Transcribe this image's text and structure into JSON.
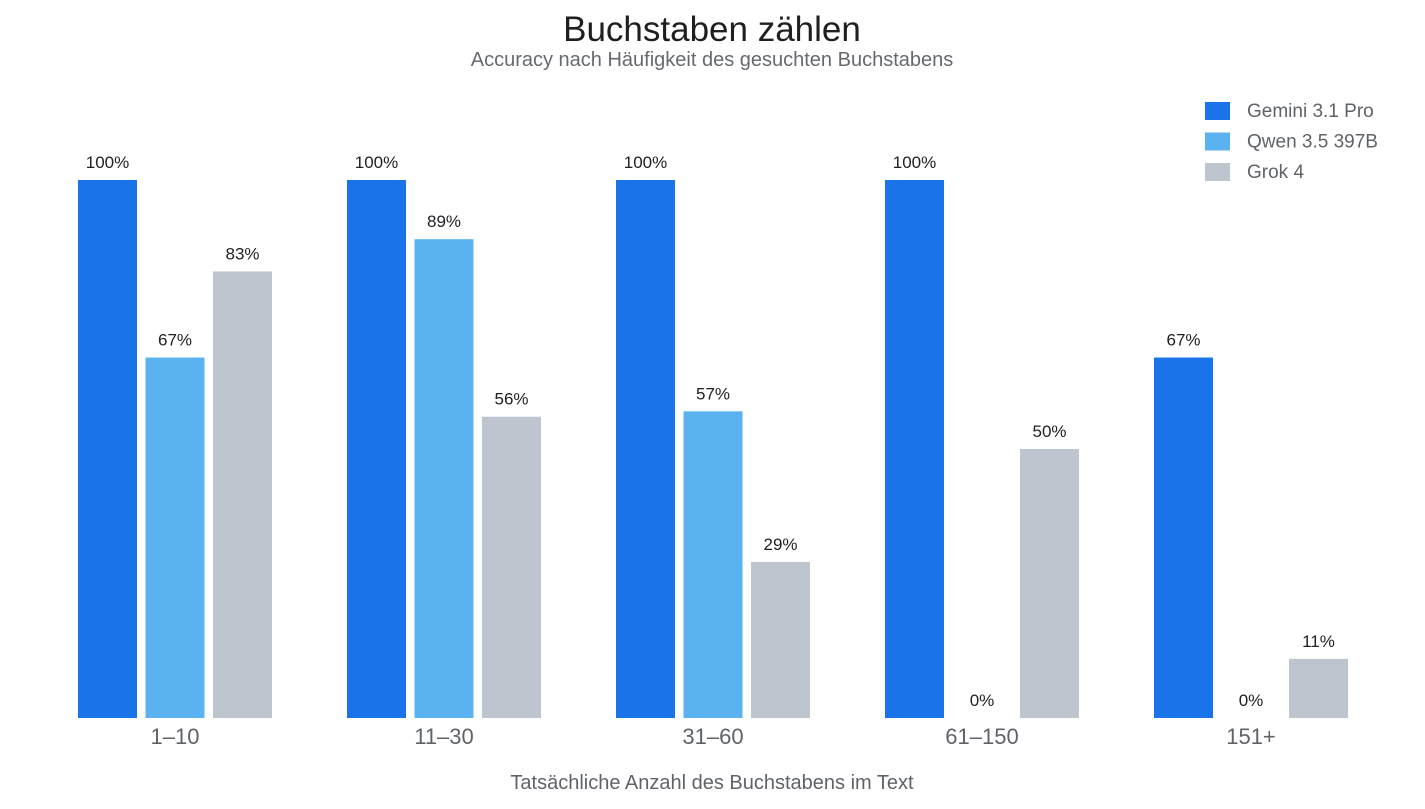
{
  "chart_data": {
    "type": "bar",
    "title": "Buchstaben zählen",
    "subtitle": "Accuracy nach Häufigkeit des gesuchten Buchstabens",
    "xlabel": "Tatsächliche Anzahl des Buchstabens im Text",
    "ylabel": "",
    "ylim": [
      0,
      100
    ],
    "grid": false,
    "legend_position": "top-right",
    "categories": [
      "1–10",
      "11–30",
      "31–60",
      "61–150",
      "151+"
    ],
    "series": [
      {
        "name": "Gemini 3.1 Pro",
        "color": "#1a73e8",
        "values": [
          100,
          100,
          100,
          100,
          67
        ],
        "labels": [
          "100%",
          "100%",
          "100%",
          "100%",
          "67%"
        ]
      },
      {
        "name": "Qwen 3.5 397B",
        "color": "#5ab3f0",
        "values": [
          67,
          89,
          57,
          0,
          0
        ],
        "labels": [
          "67%",
          "89%",
          "57%",
          "0%",
          "0%"
        ]
      },
      {
        "name": "Grok 4",
        "color": "#bfc5cf",
        "values": [
          83,
          56,
          29,
          50,
          11
        ],
        "labels": [
          "83%",
          "56%",
          "29%",
          "50%",
          "11%"
        ]
      }
    ]
  }
}
